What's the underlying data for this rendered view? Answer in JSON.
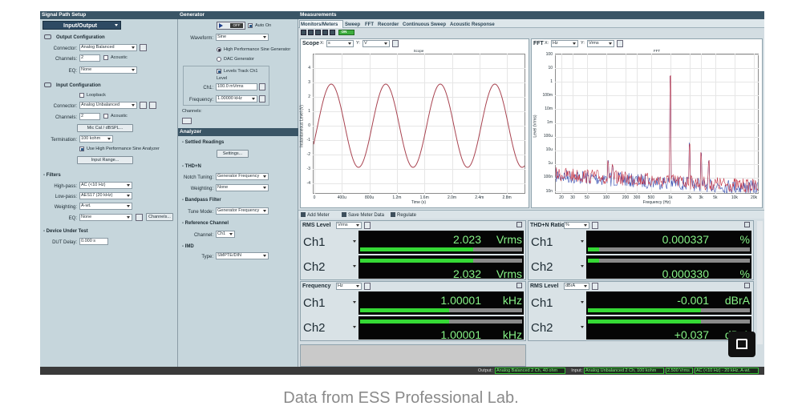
{
  "signal_path_setup": {
    "title": "Signal Path Setup",
    "mode": "Input/Output",
    "output_configuration": {
      "heading": "Output Configuration",
      "connector_label": "Connector:",
      "connector": "Analog Balanced",
      "channels_label": "Channels:",
      "channels": "2",
      "acoustic": "Acoustic",
      "eq_label": "EQ:",
      "eq": "None"
    },
    "input_configuration": {
      "heading": "Input Configuration",
      "loopback": "Loopback",
      "connector_label": "Connector:",
      "connector": "Analog Unbalanced",
      "channels_label": "Channels:",
      "channels": "2",
      "acoustic": "Acoustic",
      "mic_cal": "Mic Cal / dBSPL...",
      "termination_label": "Termination:",
      "termination": "100 kohm",
      "high_perf": "Use High Performance Sine Analyzer",
      "input_range": "Input Range..."
    },
    "filters": {
      "heading": "- Filters",
      "highpass_label": "High-pass:",
      "highpass": "AC (<10 Hz)",
      "lowpass_label": "Low-pass:",
      "lowpass": "AES17 (20 kHz)",
      "weighting_label": "Weighting:",
      "weighting": "A-wt.",
      "eq_label": "EQ:",
      "eq": "None",
      "channels_button": "Channels..."
    },
    "dut": {
      "heading": "- Device Under Test",
      "delay_label": "DUT Delay:",
      "delay": "0.000 s"
    }
  },
  "generator": {
    "title": "Generator",
    "off": "OFF",
    "auto_on": "Auto On",
    "waveform_label": "Waveform:",
    "waveform": "Sine",
    "hp_sine": "High Performance Sine Generator",
    "dac": "DAC Generator",
    "levels_track": "Levels Track Ch1",
    "level_heading": "Level",
    "ch1_label": "Ch1:",
    "ch1_level": "100.0 mVrms",
    "frequency_label": "Frequency:",
    "frequency": "1.00000 kHz",
    "channels_label": "Channels:"
  },
  "analyzer": {
    "title": "Analyzer",
    "settled_heading": "- Settled Readings",
    "settings_button": "Settings...",
    "thdn_heading": "- THD+N",
    "notch_label": "Notch Tuning:",
    "notch": "Generator Frequency",
    "weighting_label": "Weighting:",
    "weighting": "None",
    "bandpass_heading": "- Bandpass Filter",
    "tune_label": "Tune Mode:",
    "tune": "Generator Frequency",
    "ref_heading": "- Reference Channel",
    "channel_label": "Channel:",
    "channel": "Ch1",
    "imd_heading": "- IMD",
    "type_label": "Type:",
    "type": "SMPTE/DIN"
  },
  "measurements": {
    "title": "Measurements",
    "tabs": [
      "Monitors/Meters",
      "Sweep",
      "FFT",
      "Recorder",
      "Continuous Sweep",
      "Acoustic Response"
    ],
    "on": "ON",
    "scope": {
      "heading": "Scope",
      "x_prefix": "X:",
      "x_unit": "s",
      "y_prefix": "Y:",
      "y_unit": "V",
      "title": "Scope",
      "y_label": "Instantaneous Level (V)",
      "x_label": "Time (s)",
      "yticks": [
        4,
        3,
        2,
        1,
        0,
        -1,
        -2,
        -3,
        -4
      ],
      "xticks": [
        "0",
        "400u",
        "800u",
        "1.2m",
        "1.6m",
        "2.0m",
        "2.4m",
        "2.8m"
      ]
    },
    "fft": {
      "heading": "FFT",
      "x_prefix": "X:",
      "x_unit": "Hz",
      "y_prefix": "Y:",
      "y_unit": "Vrms",
      "title": "FFT",
      "y_label": "Level (Vrms)",
      "x_label": "Frequency (Hz)",
      "yticks": [
        "100",
        "10",
        "1",
        "100m",
        "10m",
        "1m",
        "100u",
        "10u",
        "1u",
        "100n",
        "10n"
      ],
      "xticks": [
        {
          "value": 20,
          "label": "20"
        },
        {
          "value": 30,
          "label": "30"
        },
        {
          "value": 50,
          "label": "50"
        },
        {
          "value": 100,
          "label": "100"
        },
        {
          "value": 200,
          "label": "200"
        },
        {
          "value": 300,
          "label": "300"
        },
        {
          "value": 500,
          "label": "500"
        },
        {
          "value": 1000,
          "label": "1k"
        },
        {
          "value": 2000,
          "label": "2k"
        },
        {
          "value": 3000,
          "label": "3k"
        },
        {
          "value": 5000,
          "label": "5k"
        },
        {
          "value": 10000,
          "label": "10k"
        },
        {
          "value": 20000,
          "label": "20k"
        }
      ]
    },
    "toolbar": [
      "Add Meter",
      "Save Meter Data",
      "Regulate"
    ],
    "meters": [
      {
        "name": "RMS Level",
        "unit": "Vrms",
        "rows": [
          {
            "channel": "Ch1",
            "reading": "2.023",
            "unit": "Vrms"
          },
          {
            "channel": "Ch2",
            "reading": "2.032",
            "unit": "Vrms"
          }
        ]
      },
      {
        "name": "THD+N Ratio",
        "unit": "%",
        "rows": [
          {
            "channel": "Ch1",
            "reading": "0.000337",
            "unit": "%"
          },
          {
            "channel": "Ch2",
            "reading": "0.000330",
            "unit": "%"
          }
        ]
      },
      {
        "name": "Frequency",
        "unit": "Hz",
        "rows": [
          {
            "channel": "Ch1",
            "reading": "1.00001",
            "unit": "kHz"
          },
          {
            "channel": "Ch2",
            "reading": "1.00001",
            "unit": "kHz"
          }
        ]
      },
      {
        "name": "RMS Level",
        "unit": "dBrA",
        "rows": [
          {
            "channel": "Ch1",
            "reading": "-0.001",
            "unit": "dBrA"
          },
          {
            "channel": "Ch2",
            "reading": "+0.037",
            "unit": "dBrA"
          }
        ]
      }
    ]
  },
  "status": {
    "output_label": "Output:",
    "output": "Analog Balanced 2 Ch, 40 ohm",
    "input_label": "Input:",
    "input": "Analog Unbalanced 2 Ch, 100 kohm",
    "range": "2.500 Vrms",
    "filter": "AC (<10 Hz) - 20 kHz, A-wt."
  },
  "caption": "Data from ESS Professional Lab."
}
